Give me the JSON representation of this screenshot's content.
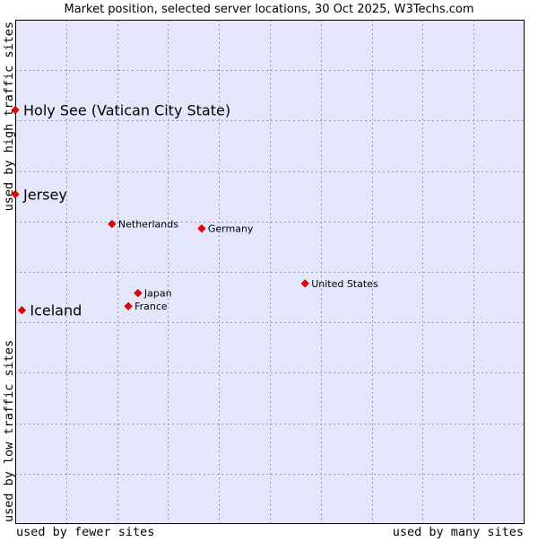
{
  "chart_data": {
    "type": "scatter",
    "title": "Market position, selected server locations, 30 Oct 2025, W3Techs.com",
    "xlabel_left": "used by fewer sites",
    "xlabel_right": "used by many sites",
    "ylabel_bottom": "used by low traffic sites",
    "ylabel_top": "used by high traffic sites",
    "xlim": [
      0,
      100
    ],
    "ylim": [
      0,
      100
    ],
    "grid": true,
    "points": [
      {
        "label": "Holy See (Vatican City State)",
        "x": 0.0,
        "y": 82.1,
        "emphasis": true
      },
      {
        "label": "Jersey",
        "x": 0.0,
        "y": 65.4,
        "emphasis": true
      },
      {
        "label": "Iceland",
        "x": 1.3,
        "y": 42.4,
        "emphasis": true
      },
      {
        "label": "Netherlands",
        "x": 19.0,
        "y": 59.5,
        "emphasis": false
      },
      {
        "label": "Germany",
        "x": 36.6,
        "y": 58.6,
        "emphasis": false
      },
      {
        "label": "United States",
        "x": 56.9,
        "y": 47.7,
        "emphasis": false
      },
      {
        "label": "Japan",
        "x": 24.1,
        "y": 45.8,
        "emphasis": false
      },
      {
        "label": "France",
        "x": 22.2,
        "y": 43.2,
        "emphasis": false
      }
    ]
  },
  "colors": {
    "plot_background": "#e6e6fa",
    "grid": "#9a9ab8",
    "border": "#000000",
    "marker": "#ee0000",
    "text": "#000000"
  }
}
